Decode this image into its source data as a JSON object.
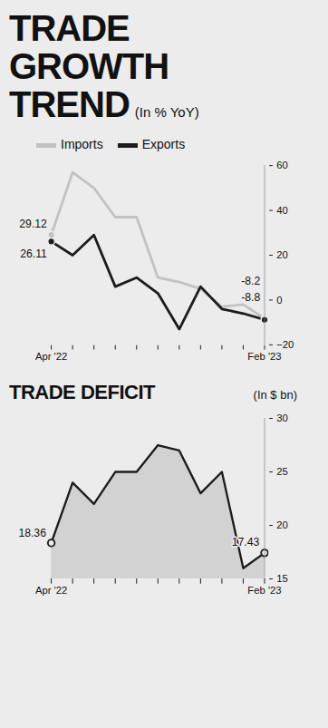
{
  "chart_data": [
    {
      "type": "line",
      "title": "TRADE GROWTH TREND",
      "subtitle": "(In % YoY)",
      "categories": [
        "Apr '22",
        null,
        null,
        null,
        null,
        null,
        null,
        null,
        null,
        null,
        "Feb '23"
      ],
      "series": [
        {
          "name": "Imports",
          "color": "#c2c2c2",
          "values": [
            29.12,
            57,
            50,
            37,
            37,
            10,
            8,
            5,
            -3,
            -2,
            -8.2
          ],
          "value_labels": [
            "29.12",
            null,
            null,
            null,
            null,
            null,
            null,
            null,
            null,
            null,
            "-8.2"
          ]
        },
        {
          "name": "Exports",
          "color": "#1c1c1c",
          "values": [
            26.11,
            20,
            29,
            6,
            10,
            3,
            -13,
            6,
            -4,
            -6,
            -8.8
          ],
          "value_labels": [
            "26.11",
            null,
            null,
            null,
            null,
            null,
            null,
            null,
            null,
            null,
            "-8.8"
          ]
        }
      ],
      "ylim": [
        -20,
        60
      ],
      "yticks": [
        -20,
        0,
        20,
        40,
        60
      ],
      "legend": "top"
    },
    {
      "type": "area",
      "title": "TRADE DEFICIT",
      "subtitle": "(In $ bn)",
      "categories": [
        "Apr '22",
        null,
        null,
        null,
        null,
        null,
        null,
        null,
        null,
        null,
        "Feb '23"
      ],
      "values": [
        18.36,
        24,
        22,
        25,
        25,
        27.5,
        27,
        23,
        25,
        16,
        17.43
      ],
      "value_labels": [
        "18.36",
        null,
        null,
        null,
        null,
        null,
        null,
        null,
        null,
        null,
        "17.43"
      ],
      "color": "#d2d2d2",
      "ylim": [
        15,
        30
      ],
      "yticks": [
        15,
        20,
        25,
        30
      ]
    }
  ]
}
